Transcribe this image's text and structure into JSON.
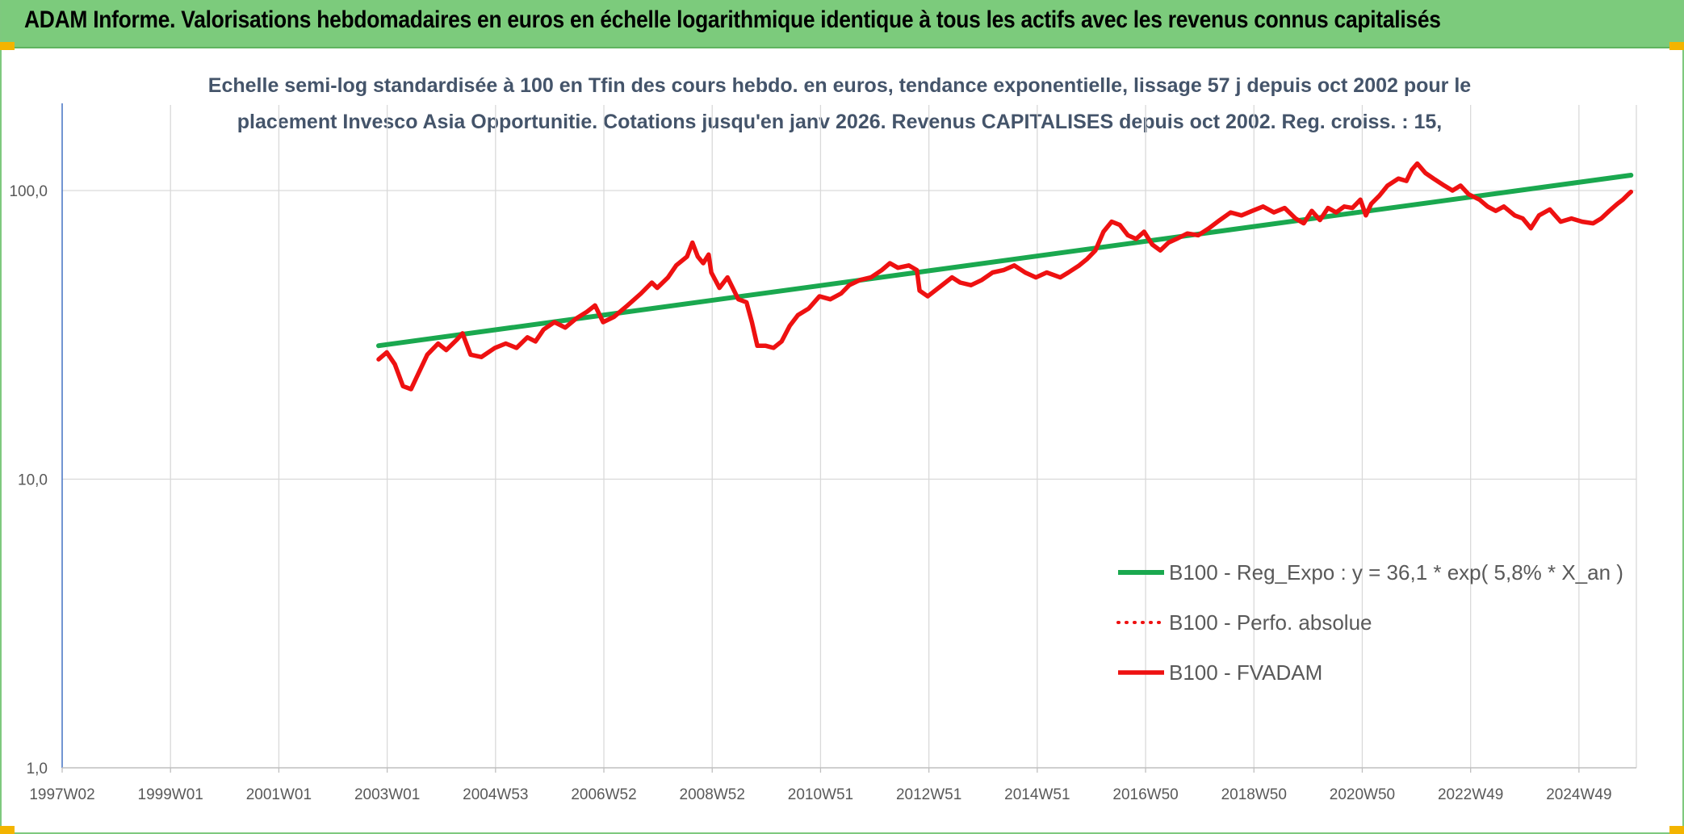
{
  "banner": {
    "title": "ADAM Informe. Valorisations hebdomadaires en euros en échelle logarithmique identique à tous les actifs avec les revenus connus capitalisés"
  },
  "colors": {
    "banner": "#7ccb7c",
    "trend": "#1aa84f",
    "fvadam": "#ee1111",
    "perfo": "#ee1111",
    "subtitle": "#44546a",
    "corner": "#f3b400"
  },
  "chart_data": {
    "type": "line",
    "title_line1": "Echelle semi-log standardisée à 100 en Tfin des cours hebdo. en euros, tendance exponentielle, lissage 57 j depuis oct 2002 pour le",
    "title_line2": "placement Invesco Asia Opportunitie. Cotations jusqu'en janv 2026. Revenus CAPITALISES depuis oct 2002. Reg. croiss. : 15,",
    "y_scale": "log",
    "y_range": [
      1,
      200
    ],
    "y_ticks": [
      "1,0",
      "10,0",
      "100,0"
    ],
    "x_range": [
      1997.0,
      2026.1
    ],
    "x_ticks": [
      "1997W02",
      "1999W01",
      "2001W01",
      "2003W01",
      "2004W53",
      "2006W52",
      "2008W52",
      "2010W51",
      "2012W51",
      "2014W51",
      "2016W50",
      "2018W50",
      "2020W50",
      "2022W49",
      "2024W49"
    ],
    "grid": true,
    "legend_position": "bottom-right",
    "legend": [
      "B100 - Reg_Expo : y = 36,1 * exp( 5,8% *  X_an )",
      "B100 - Perfo. absolue",
      "B100 - FVADAM"
    ],
    "series": [
      {
        "name": "B100 - Reg_Expo : y = 36,1 * exp( 5,8% *  X_an )",
        "style": "solid",
        "points": [
          [
            2002.85,
            29.0
          ],
          [
            2026.0,
            113.0
          ]
        ]
      },
      {
        "name": "B100 - Perfo. absolue",
        "style": "dotted",
        "points": []
      },
      {
        "name": "B100 - FVADAM",
        "style": "solid",
        "points": [
          [
            2002.85,
            26
          ],
          [
            2003.0,
            27.5
          ],
          [
            2003.15,
            25
          ],
          [
            2003.3,
            21
          ],
          [
            2003.45,
            20.5
          ],
          [
            2003.55,
            22.5
          ],
          [
            2003.75,
            27
          ],
          [
            2003.95,
            29.5
          ],
          [
            2004.1,
            28
          ],
          [
            2004.3,
            30.5
          ],
          [
            2004.4,
            32
          ],
          [
            2004.55,
            27
          ],
          [
            2004.75,
            26.5
          ],
          [
            2005.0,
            28.5
          ],
          [
            2005.2,
            29.5
          ],
          [
            2005.4,
            28.5
          ],
          [
            2005.6,
            31
          ],
          [
            2005.75,
            30
          ],
          [
            2005.9,
            33
          ],
          [
            2006.1,
            35
          ],
          [
            2006.3,
            33.5
          ],
          [
            2006.5,
            36
          ],
          [
            2006.7,
            38
          ],
          [
            2006.85,
            40
          ],
          [
            2007.0,
            35
          ],
          [
            2007.2,
            36.5
          ],
          [
            2007.45,
            40
          ],
          [
            2007.7,
            44
          ],
          [
            2007.9,
            48
          ],
          [
            2008.0,
            46
          ],
          [
            2008.2,
            50
          ],
          [
            2008.35,
            55
          ],
          [
            2008.55,
            59
          ],
          [
            2008.65,
            66
          ],
          [
            2008.75,
            59
          ],
          [
            2008.85,
            56
          ],
          [
            2008.95,
            60
          ],
          [
            2009.0,
            52
          ],
          [
            2009.15,
            46
          ],
          [
            2009.3,
            50
          ],
          [
            2009.5,
            42
          ],
          [
            2009.65,
            41
          ],
          [
            2009.75,
            35
          ],
          [
            2009.85,
            29
          ],
          [
            2010.0,
            29
          ],
          [
            2010.15,
            28.5
          ],
          [
            2010.3,
            30
          ],
          [
            2010.45,
            34
          ],
          [
            2010.6,
            37
          ],
          [
            2010.8,
            39
          ],
          [
            2011.0,
            43
          ],
          [
            2011.2,
            42
          ],
          [
            2011.4,
            44
          ],
          [
            2011.55,
            47
          ],
          [
            2011.75,
            49
          ],
          [
            2011.95,
            50
          ],
          [
            2012.15,
            53
          ],
          [
            2012.3,
            56
          ],
          [
            2012.45,
            54
          ],
          [
            2012.65,
            55
          ],
          [
            2012.8,
            53
          ],
          [
            2012.85,
            45
          ],
          [
            2013.0,
            43
          ],
          [
            2013.2,
            46
          ],
          [
            2013.45,
            50
          ],
          [
            2013.6,
            48
          ],
          [
            2013.8,
            47
          ],
          [
            2014.0,
            49
          ],
          [
            2014.2,
            52
          ],
          [
            2014.4,
            53
          ],
          [
            2014.6,
            55
          ],
          [
            2014.8,
            52
          ],
          [
            2015.0,
            50
          ],
          [
            2015.2,
            52
          ],
          [
            2015.45,
            50
          ],
          [
            2015.6,
            52
          ],
          [
            2015.8,
            55
          ],
          [
            2015.95,
            58
          ],
          [
            2016.1,
            62
          ],
          [
            2016.25,
            72
          ],
          [
            2016.4,
            78
          ],
          [
            2016.55,
            76
          ],
          [
            2016.7,
            70
          ],
          [
            2016.85,
            68
          ],
          [
            2017.0,
            72
          ],
          [
            2017.15,
            65
          ],
          [
            2017.3,
            62
          ],
          [
            2017.45,
            66
          ],
          [
            2017.6,
            68
          ],
          [
            2017.8,
            71
          ],
          [
            2018.0,
            70
          ],
          [
            2018.2,
            74
          ],
          [
            2018.4,
            79
          ],
          [
            2018.6,
            84
          ],
          [
            2018.8,
            82
          ],
          [
            2019.0,
            85
          ],
          [
            2019.2,
            88
          ],
          [
            2019.4,
            84
          ],
          [
            2019.6,
            87
          ],
          [
            2019.8,
            80
          ],
          [
            2019.95,
            77
          ],
          [
            2020.1,
            85
          ],
          [
            2020.25,
            79
          ],
          [
            2020.4,
            87
          ],
          [
            2020.55,
            84
          ],
          [
            2020.7,
            88
          ],
          [
            2020.85,
            87
          ],
          [
            2021.0,
            93
          ],
          [
            2021.1,
            82
          ],
          [
            2021.2,
            90
          ],
          [
            2021.35,
            96
          ],
          [
            2021.5,
            104
          ],
          [
            2021.7,
            110
          ],
          [
            2021.85,
            108
          ],
          [
            2021.95,
            118
          ],
          [
            2022.05,
            124
          ],
          [
            2022.2,
            115
          ],
          [
            2022.35,
            110
          ],
          [
            2022.55,
            104
          ],
          [
            2022.7,
            100
          ],
          [
            2022.85,
            104
          ],
          [
            2023.0,
            97
          ],
          [
            2023.2,
            93
          ],
          [
            2023.35,
            88
          ],
          [
            2023.5,
            85
          ],
          [
            2023.65,
            88
          ],
          [
            2023.85,
            82
          ],
          [
            2024.0,
            80
          ],
          [
            2024.15,
            74
          ],
          [
            2024.3,
            82
          ],
          [
            2024.5,
            86
          ],
          [
            2024.7,
            78
          ],
          [
            2024.9,
            80
          ],
          [
            2025.1,
            78
          ],
          [
            2025.3,
            77
          ],
          [
            2025.45,
            80
          ],
          [
            2025.6,
            85
          ],
          [
            2025.75,
            90
          ],
          [
            2025.85,
            93
          ],
          [
            2025.95,
            97
          ],
          [
            2026.0,
            99
          ]
        ]
      }
    ]
  }
}
